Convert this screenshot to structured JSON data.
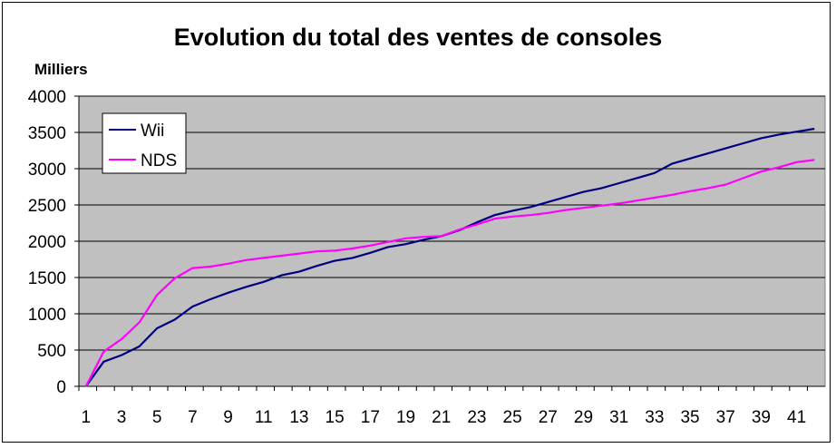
{
  "chart_data": {
    "type": "line",
    "title": "Evolution du total des ventes de consoles",
    "ylabel": "Milliers",
    "xlabel": "",
    "ylim": [
      0,
      4000
    ],
    "yticks": [
      0,
      500,
      1000,
      1500,
      2000,
      2500,
      3000,
      3500,
      4000
    ],
    "x": [
      1,
      2,
      3,
      4,
      5,
      6,
      7,
      8,
      9,
      10,
      11,
      12,
      13,
      14,
      15,
      16,
      17,
      18,
      19,
      20,
      21,
      22,
      23,
      24,
      25,
      26,
      27,
      28,
      29,
      30,
      31,
      32,
      33,
      34,
      35,
      36,
      37,
      38,
      39,
      40,
      41,
      42
    ],
    "xtick_labels": [
      "1",
      "3",
      "5",
      "7",
      "9",
      "11",
      "13",
      "15",
      "17",
      "19",
      "21",
      "23",
      "25",
      "27",
      "29",
      "31",
      "33",
      "35",
      "37",
      "39",
      "41"
    ],
    "grid": "horizontal",
    "legend_position": "top-left",
    "plot_background": "#c0c0c0",
    "series": [
      {
        "name": "Wii",
        "color": "#000080",
        "values": [
          0,
          340,
          430,
          550,
          800,
          920,
          1100,
          1200,
          1290,
          1370,
          1440,
          1530,
          1580,
          1660,
          1730,
          1770,
          1840,
          1920,
          1960,
          2020,
          2070,
          2150,
          2260,
          2360,
          2420,
          2470,
          2540,
          2610,
          2680,
          2730,
          2800,
          2870,
          2940,
          3070,
          3140,
          3210,
          3280,
          3350,
          3420,
          3470,
          3510,
          3550
        ]
      },
      {
        "name": "NDS",
        "color": "#ff00ff",
        "values": [
          0,
          480,
          650,
          880,
          1260,
          1490,
          1630,
          1650,
          1690,
          1740,
          1770,
          1800,
          1830,
          1860,
          1870,
          1900,
          1940,
          1990,
          2040,
          2060,
          2070,
          2160,
          2230,
          2310,
          2340,
          2360,
          2390,
          2430,
          2460,
          2490,
          2520,
          2560,
          2600,
          2640,
          2690,
          2730,
          2780,
          2870,
          2960,
          3020,
          3090,
          3120
        ]
      }
    ]
  }
}
